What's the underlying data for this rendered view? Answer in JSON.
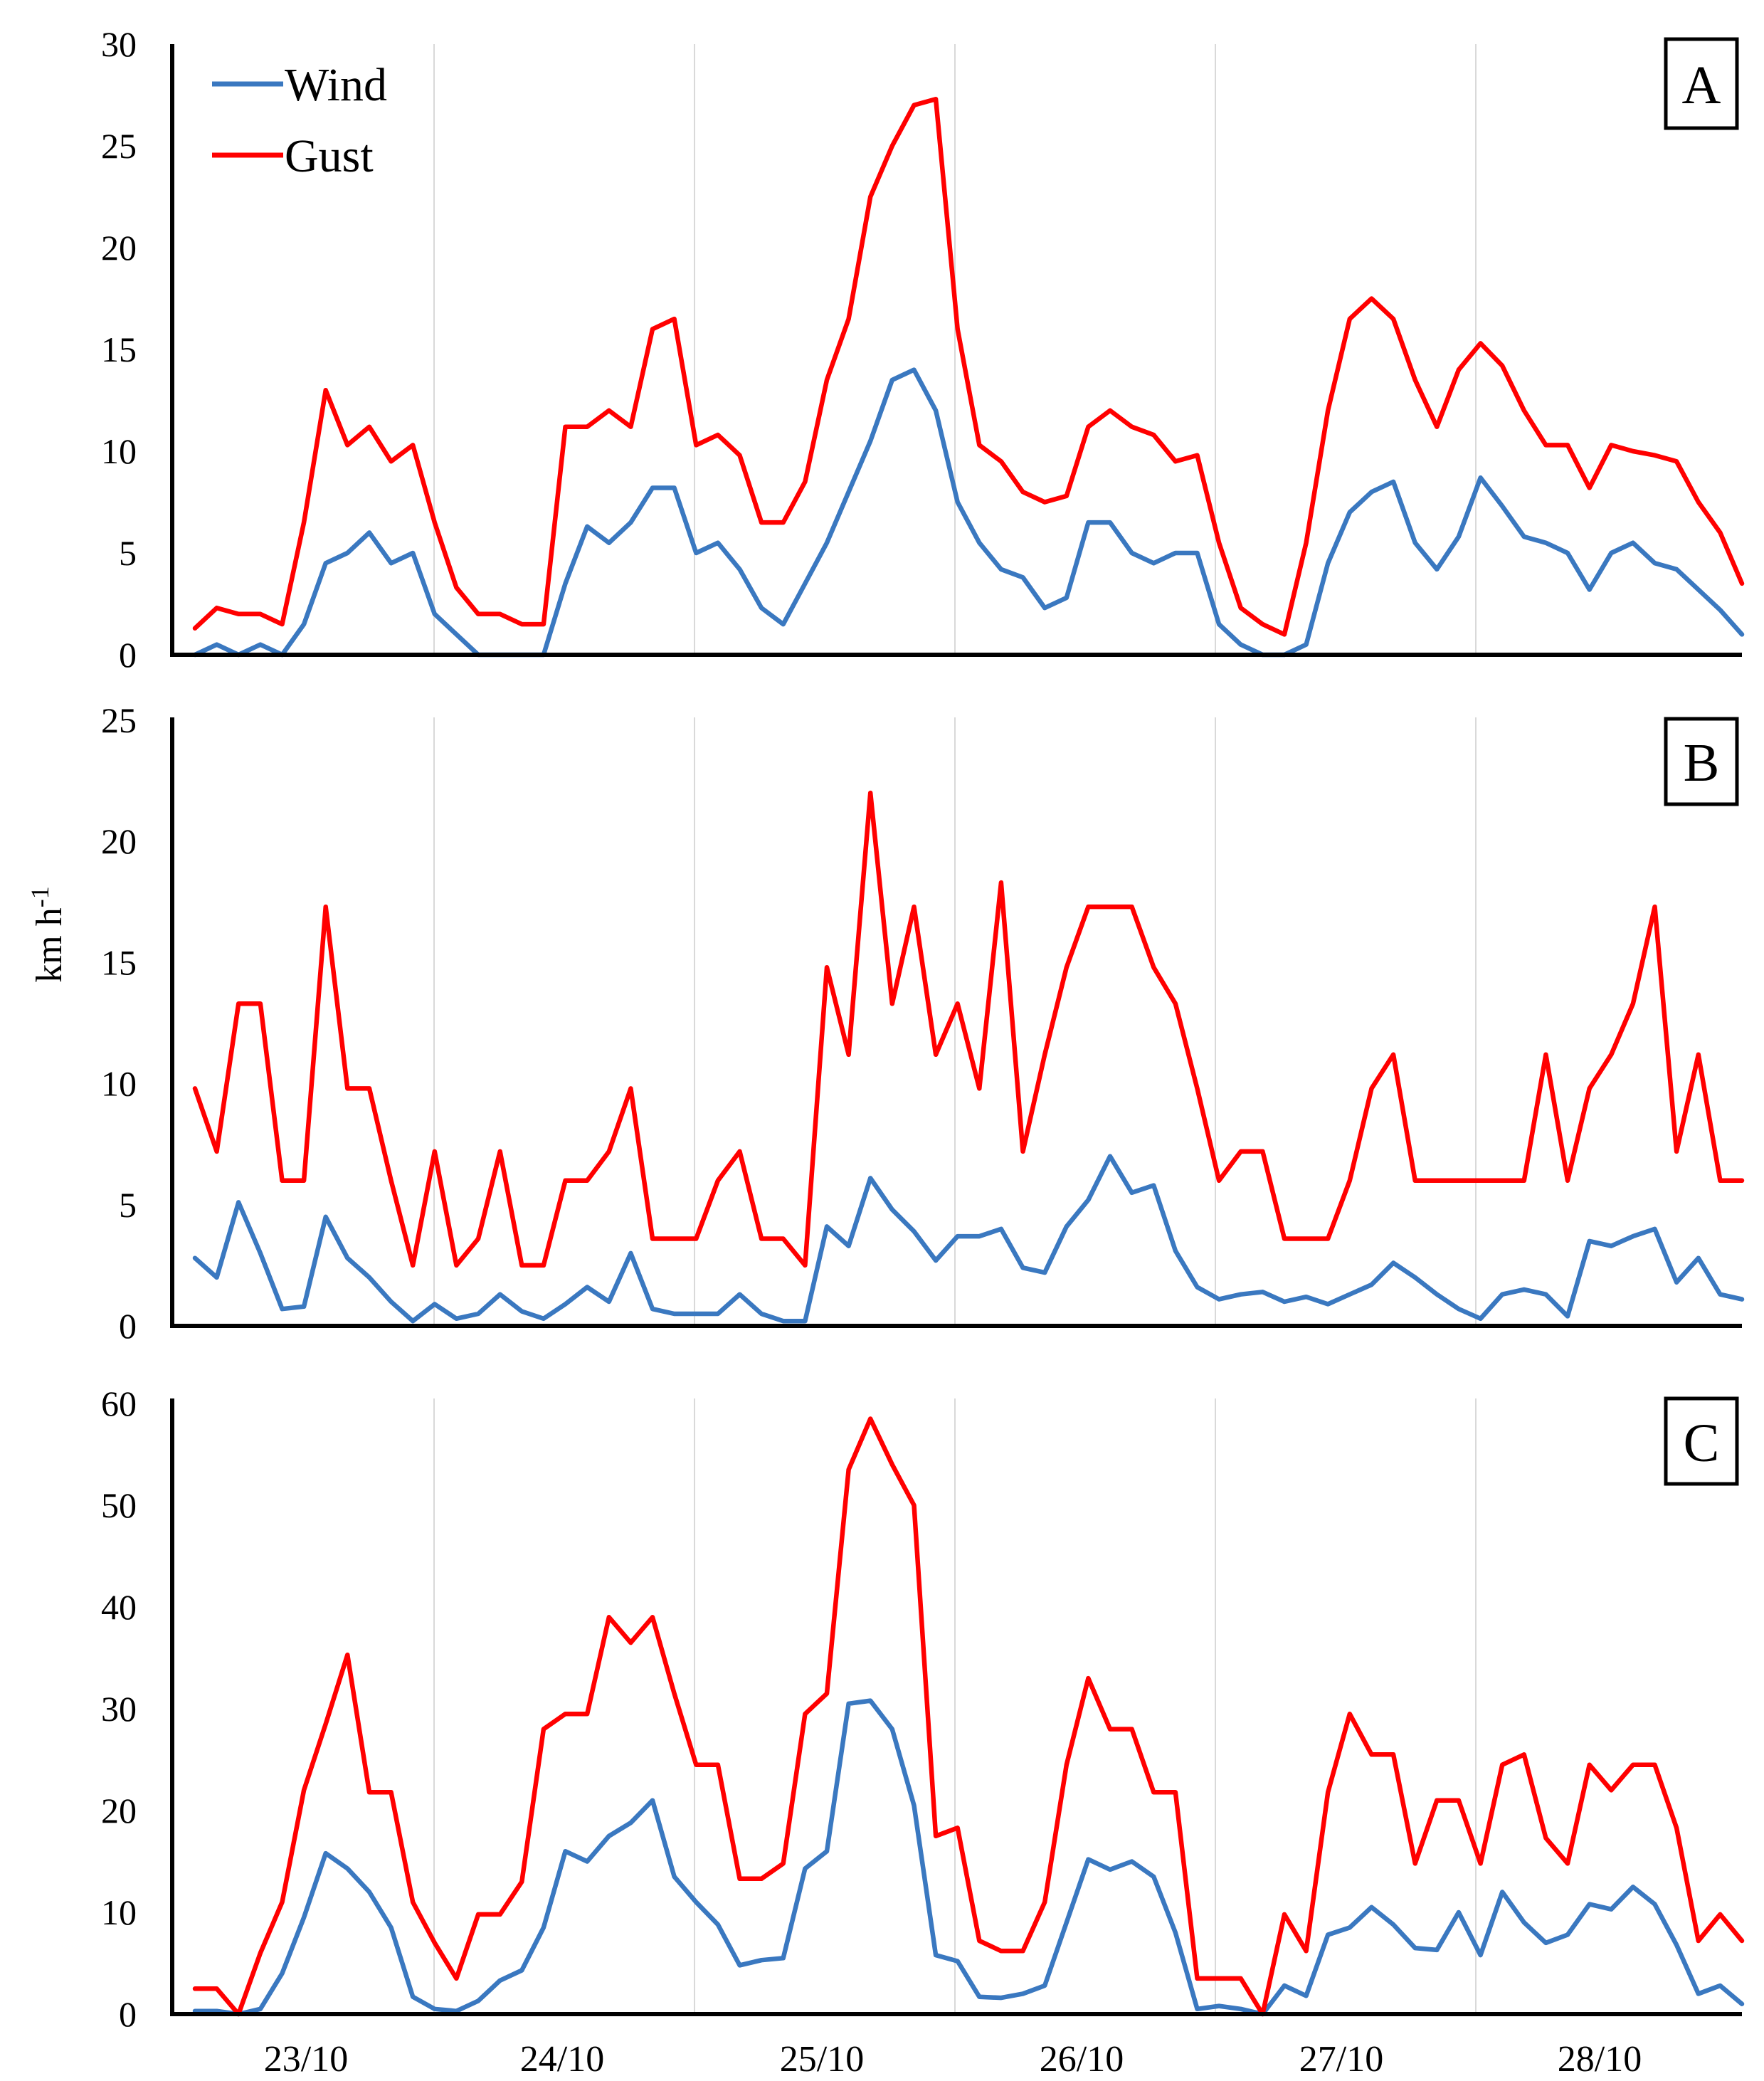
{
  "chart_data": [
    {
      "type": "line",
      "panel_label": "A",
      "ylim": [
        0,
        30
      ],
      "yticks": [
        0,
        5,
        10,
        15,
        20,
        25,
        30
      ],
      "legend": {
        "placement": "top-left",
        "entries": [
          "Wind",
          "Gust"
        ]
      },
      "series": [
        {
          "name": "Wind",
          "color": "#3a78c0",
          "values": [
            0,
            0.5,
            0,
            0.5,
            0,
            1.5,
            4.5,
            5,
            6,
            4.5,
            5,
            2,
            1,
            0,
            0,
            0,
            0,
            3.5,
            6.3,
            5.5,
            6.5,
            8.2,
            8.2,
            5,
            5.5,
            4.2,
            2.3,
            1.5,
            3.5,
            5.5,
            8,
            10.5,
            13.5,
            14,
            12,
            7.5,
            5.5,
            4.2,
            3.8,
            2.3,
            2.8,
            6.5,
            6.5,
            5,
            4.5,
            5,
            5,
            1.5,
            0.5,
            0,
            0,
            0.5,
            4.5,
            7,
            8,
            8.5,
            5.5,
            4.2,
            5.8,
            8.7,
            7.3,
            5.8,
            5.5,
            5,
            3.2,
            5,
            5.5,
            4.5,
            4.2,
            3.2,
            2.2,
            1
          ]
        },
        {
          "name": "Gust",
          "color": "#ff0000",
          "values": [
            1.3,
            2.3,
            2,
            2,
            1.5,
            6.5,
            13,
            10.3,
            11.2,
            9.5,
            10.3,
            6.5,
            3.3,
            2,
            2,
            1.5,
            1.5,
            11.2,
            11.2,
            12,
            11.2,
            16,
            16.5,
            10.3,
            10.8,
            9.8,
            6.5,
            6.5,
            8.5,
            13.5,
            16.5,
            22.5,
            25,
            27,
            27.3,
            16,
            10.3,
            9.5,
            8,
            7.5,
            7.8,
            11.2,
            12,
            11.2,
            10.8,
            9.5,
            9.8,
            5.5,
            2.3,
            1.5,
            1,
            5.5,
            12,
            16.5,
            17.5,
            16.5,
            13.5,
            11.2,
            14,
            15.3,
            14.2,
            12,
            10.3,
            10.3,
            8.2,
            10.3,
            10,
            9.8,
            9.5,
            7.5,
            6,
            3.5
          ]
        }
      ]
    },
    {
      "type": "line",
      "panel_label": "B",
      "ylabel": "km h-1",
      "ylim": [
        0,
        25
      ],
      "yticks": [
        0,
        5,
        10,
        15,
        20,
        25
      ],
      "series": [
        {
          "name": "Wind",
          "color": "#3a78c0",
          "values": [
            2.8,
            2,
            5.1,
            3,
            0.7,
            0.8,
            4.5,
            2.8,
            2,
            1,
            0.2,
            0.9,
            0.3,
            0.5,
            1.3,
            0.6,
            0.3,
            0.9,
            1.6,
            1,
            3,
            0.7,
            0.5,
            0.5,
            0.5,
            1.3,
            0.5,
            0.2,
            0.2,
            4.1,
            3.3,
            6.1,
            4.8,
            3.9,
            2.7,
            3.7,
            3.7,
            4,
            2.4,
            2.2,
            4.1,
            5.2,
            7,
            5.5,
            5.8,
            3.1,
            1.6,
            1.1,
            1.3,
            1.4,
            1,
            1.2,
            0.9,
            1.3,
            1.7,
            2.6,
            2,
            1.3,
            0.7,
            0.3,
            1.3,
            1.5,
            1.3,
            0.4,
            3.5,
            3.3,
            3.7,
            4,
            1.8,
            2.8,
            1.3,
            1.1
          ]
        },
        {
          "name": "Gust",
          "color": "#ff0000",
          "values": [
            9.8,
            7.2,
            13.3,
            13.3,
            6,
            6,
            17.3,
            9.8,
            9.8,
            6,
            2.5,
            7.2,
            2.5,
            3.6,
            7.2,
            2.5,
            2.5,
            6,
            6,
            7.2,
            9.8,
            3.6,
            3.6,
            3.6,
            6,
            7.2,
            3.6,
            3.6,
            2.5,
            14.8,
            11.2,
            22,
            13.3,
            17.3,
            11.2,
            13.3,
            9.8,
            18.3,
            7.2,
            11.2,
            14.8,
            17.3,
            17.3,
            17.3,
            14.8,
            13.3,
            9.8,
            6,
            7.2,
            7.2,
            3.6,
            3.6,
            3.6,
            6,
            9.8,
            11.2,
            6,
            6,
            6,
            6,
            6,
            6,
            11.2,
            6,
            9.8,
            11.2,
            13.3,
            17.3,
            7.2,
            11.2,
            6,
            6
          ]
        }
      ]
    },
    {
      "type": "line",
      "panel_label": "C",
      "ylim": [
        0,
        60
      ],
      "yticks": [
        0,
        10,
        20,
        30,
        40,
        50,
        60
      ],
      "xlabels": [
        "23/10",
        "24/10",
        "25/10",
        "26/10",
        "27/10",
        "28/10"
      ],
      "series": [
        {
          "name": "Wind",
          "color": "#3a78c0",
          "values": [
            0.3,
            0.3,
            0,
            0.5,
            4,
            9.5,
            15.8,
            14.3,
            12,
            8.5,
            1.7,
            0.5,
            0.3,
            1.3,
            3.3,
            4.3,
            8.5,
            16,
            15,
            17.5,
            18.8,
            21,
            13.5,
            11,
            8.8,
            4.8,
            5.3,
            5.5,
            14.3,
            16,
            30.5,
            30.8,
            28,
            20.5,
            5.8,
            5.2,
            1.7,
            1.6,
            2,
            2.8,
            9,
            15.2,
            14.2,
            15,
            13.5,
            8,
            0.5,
            0.8,
            0.5,
            0,
            2.8,
            1.8,
            7.8,
            8.5,
            10.5,
            8.8,
            6.5,
            6.3,
            10,
            5.8,
            12,
            9,
            7,
            7.8,
            10.8,
            10.3,
            12.5,
            10.8,
            6.8,
            2,
            2.8,
            1
          ]
        },
        {
          "name": "Gust",
          "color": "#ff0000",
          "values": [
            2.5,
            2.5,
            0,
            6,
            11,
            22,
            28.5,
            35.3,
            21.8,
            21.8,
            11,
            7,
            3.5,
            9.8,
            9.8,
            13,
            28,
            29.5,
            29.5,
            39,
            36.5,
            39,
            31.5,
            24.5,
            24.5,
            13.3,
            13.3,
            14.8,
            29.5,
            31.5,
            53.5,
            58.5,
            54,
            50,
            17.5,
            18.3,
            7.2,
            6.2,
            6.2,
            11,
            24.5,
            33,
            28,
            28,
            21.8,
            21.8,
            3.5,
            3.5,
            3.5,
            0,
            9.8,
            6.2,
            21.8,
            29.5,
            25.5,
            25.5,
            14.8,
            21,
            21,
            14.8,
            24.5,
            25.5,
            17.3,
            14.8,
            24.5,
            22,
            24.5,
            24.5,
            18.3,
            7.2,
            9.8,
            7.2
          ]
        }
      ]
    }
  ]
}
